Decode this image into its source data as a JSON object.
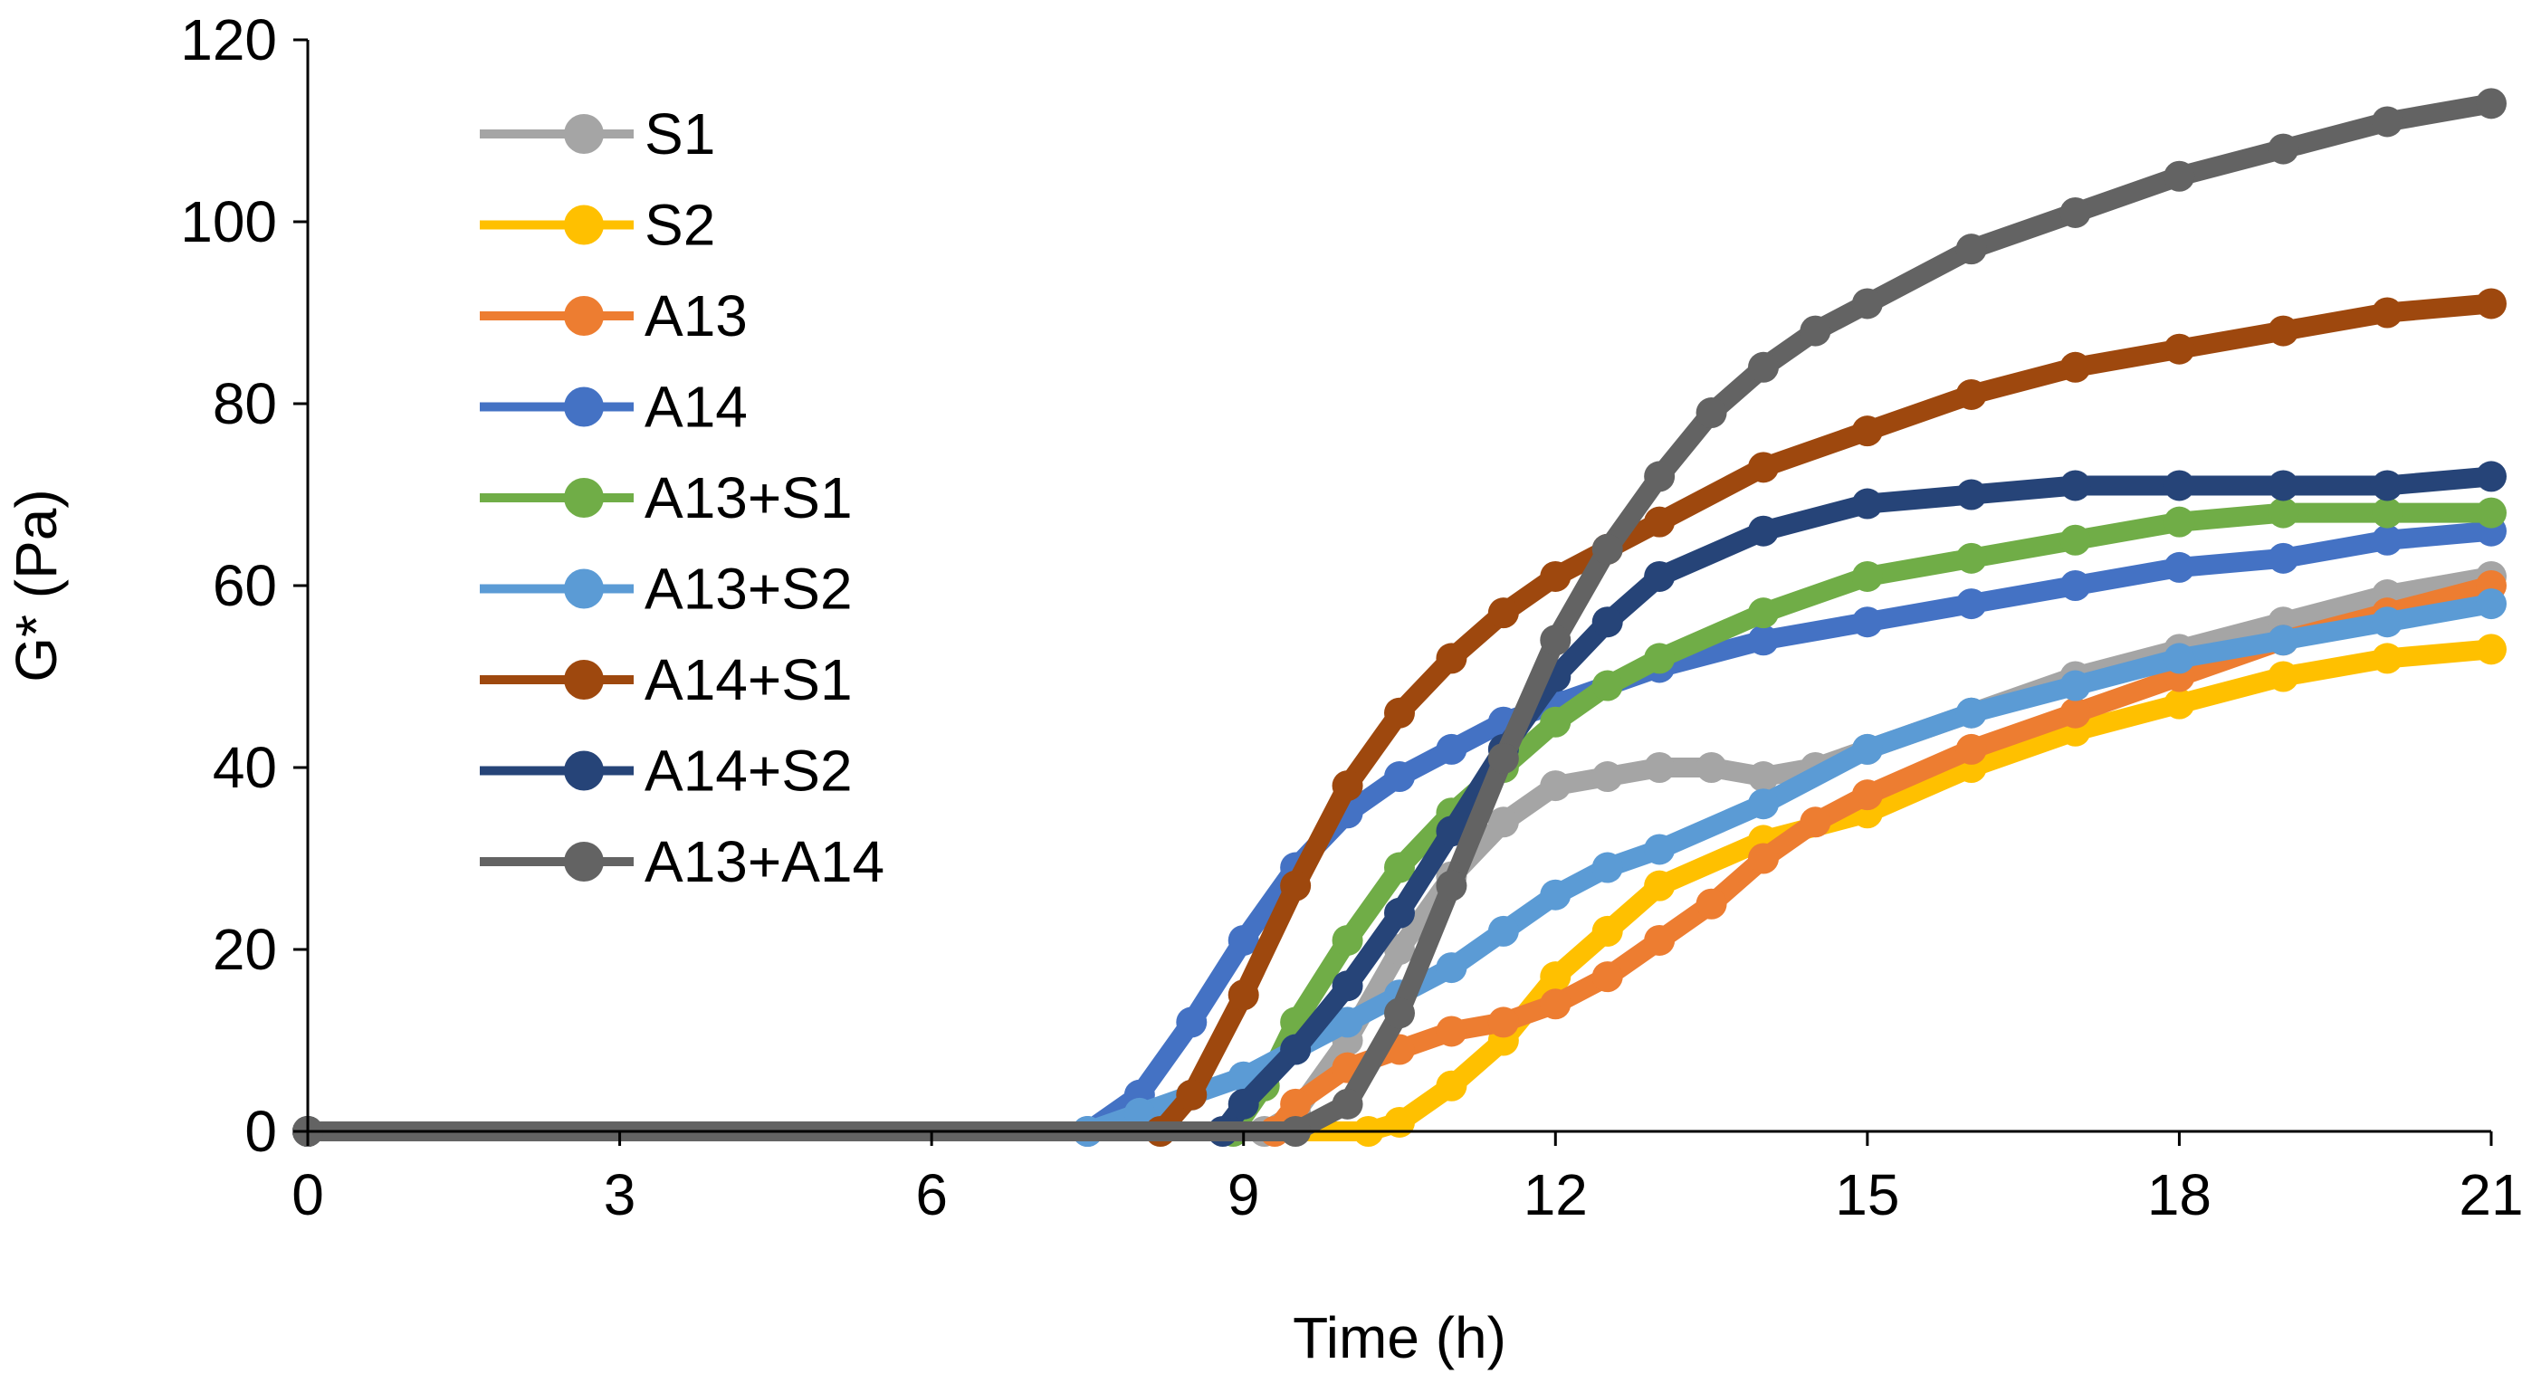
{
  "chart_data": {
    "type": "line",
    "title": "",
    "xlabel": "Time (h)",
    "ylabel": "G* (Pa)",
    "xlim": [
      0,
      21
    ],
    "ylim": [
      0,
      120
    ],
    "xticks": [
      0,
      3,
      6,
      9,
      12,
      15,
      18,
      21
    ],
    "yticks": [
      0,
      20,
      40,
      60,
      80,
      100,
      120
    ],
    "grid": false,
    "legend_position": "top-left",
    "series": [
      {
        "name": "S1",
        "color": "#A5A5A5",
        "x": [
          0,
          9.2,
          9.5,
          10,
          10.5,
          11,
          11.5,
          12,
          12.5,
          13,
          13.5,
          14,
          14.5,
          15,
          16,
          17,
          18,
          19,
          20,
          21
        ],
        "y": [
          0,
          0,
          2,
          10,
          20,
          28,
          34,
          38,
          39,
          40,
          40,
          39,
          40,
          42,
          46,
          50,
          53,
          56,
          59,
          61
        ]
      },
      {
        "name": "S2",
        "color": "#FFC000",
        "x": [
          0,
          10.2,
          10.5,
          11,
          11.5,
          12,
          12.5,
          13,
          14,
          15,
          16,
          17,
          18,
          19,
          20,
          21
        ],
        "y": [
          0,
          0,
          1,
          5,
          10,
          17,
          22,
          27,
          32,
          35,
          40,
          44,
          47,
          50,
          52,
          53
        ]
      },
      {
        "name": "A13",
        "color": "#ED7D31",
        "x": [
          0,
          9.3,
          9.5,
          10,
          10.5,
          11,
          11.5,
          12,
          12.5,
          13,
          13.5,
          14,
          14.5,
          15,
          16,
          17,
          18,
          19,
          20,
          21
        ],
        "y": [
          0,
          0,
          3,
          7,
          9,
          11,
          12,
          14,
          17,
          21,
          25,
          30,
          34,
          37,
          42,
          46,
          50,
          54,
          57,
          60
        ]
      },
      {
        "name": "A14",
        "color": "#4472C4",
        "x": [
          0,
          7.5,
          8,
          8.5,
          9,
          9.5,
          10,
          10.5,
          11,
          11.5,
          12,
          13,
          14,
          15,
          16,
          17,
          18,
          19,
          20,
          21
        ],
        "y": [
          0,
          0,
          4,
          12,
          21,
          29,
          35,
          39,
          42,
          45,
          47,
          51,
          54,
          56,
          58,
          60,
          62,
          63,
          65,
          66
        ]
      },
      {
        "name": "A13+S1",
        "color": "#70AD47",
        "x": [
          0,
          8.9,
          9.2,
          9.5,
          10,
          10.5,
          11,
          11.5,
          12,
          12.5,
          13,
          14,
          15,
          16,
          17,
          18,
          19,
          20,
          21
        ],
        "y": [
          0,
          0,
          5,
          12,
          21,
          29,
          35,
          40,
          45,
          49,
          52,
          57,
          61,
          63,
          65,
          67,
          68,
          68,
          68
        ]
      },
      {
        "name": "A13+S2",
        "color": "#5B9BD5",
        "x": [
          0,
          7.5,
          8,
          8.5,
          9,
          9.5,
          10,
          10.5,
          11,
          11.5,
          12,
          12.5,
          13,
          14,
          15,
          16,
          17,
          18,
          19,
          20,
          21
        ],
        "y": [
          0,
          0,
          2,
          4,
          6,
          9,
          12,
          15,
          18,
          22,
          26,
          29,
          31,
          36,
          42,
          46,
          49,
          52,
          54,
          56,
          58
        ]
      },
      {
        "name": "A14+S1",
        "color": "#9E480E",
        "x": [
          0,
          8.2,
          8.5,
          9,
          9.5,
          10,
          10.5,
          11,
          11.5,
          12,
          12.5,
          13,
          14,
          15,
          16,
          17,
          18,
          19,
          20,
          21
        ],
        "y": [
          0,
          0,
          4,
          15,
          27,
          38,
          46,
          52,
          57,
          61,
          64,
          67,
          73,
          77,
          81,
          84,
          86,
          88,
          90,
          91
        ]
      },
      {
        "name": "A14+S2",
        "color": "#264478",
        "x": [
          0,
          8.8,
          9,
          9.5,
          10,
          10.5,
          11,
          11.5,
          12,
          12.5,
          13,
          14,
          15,
          16,
          17,
          18,
          19,
          20,
          21
        ],
        "y": [
          0,
          0,
          3,
          9,
          16,
          24,
          33,
          42,
          50,
          56,
          61,
          66,
          69,
          70,
          71,
          71,
          71,
          71,
          72
        ]
      },
      {
        "name": "A13+A14",
        "color": "#636363",
        "x": [
          0,
          9.5,
          10,
          10.5,
          11,
          11.5,
          12,
          12.5,
          13,
          13.5,
          14,
          14.5,
          15,
          16,
          17,
          18,
          19,
          20,
          21
        ],
        "y": [
          0,
          0,
          3,
          13,
          27,
          41,
          54,
          64,
          72,
          79,
          84,
          88,
          91,
          97,
          101,
          105,
          108,
          111,
          113
        ]
      }
    ]
  }
}
